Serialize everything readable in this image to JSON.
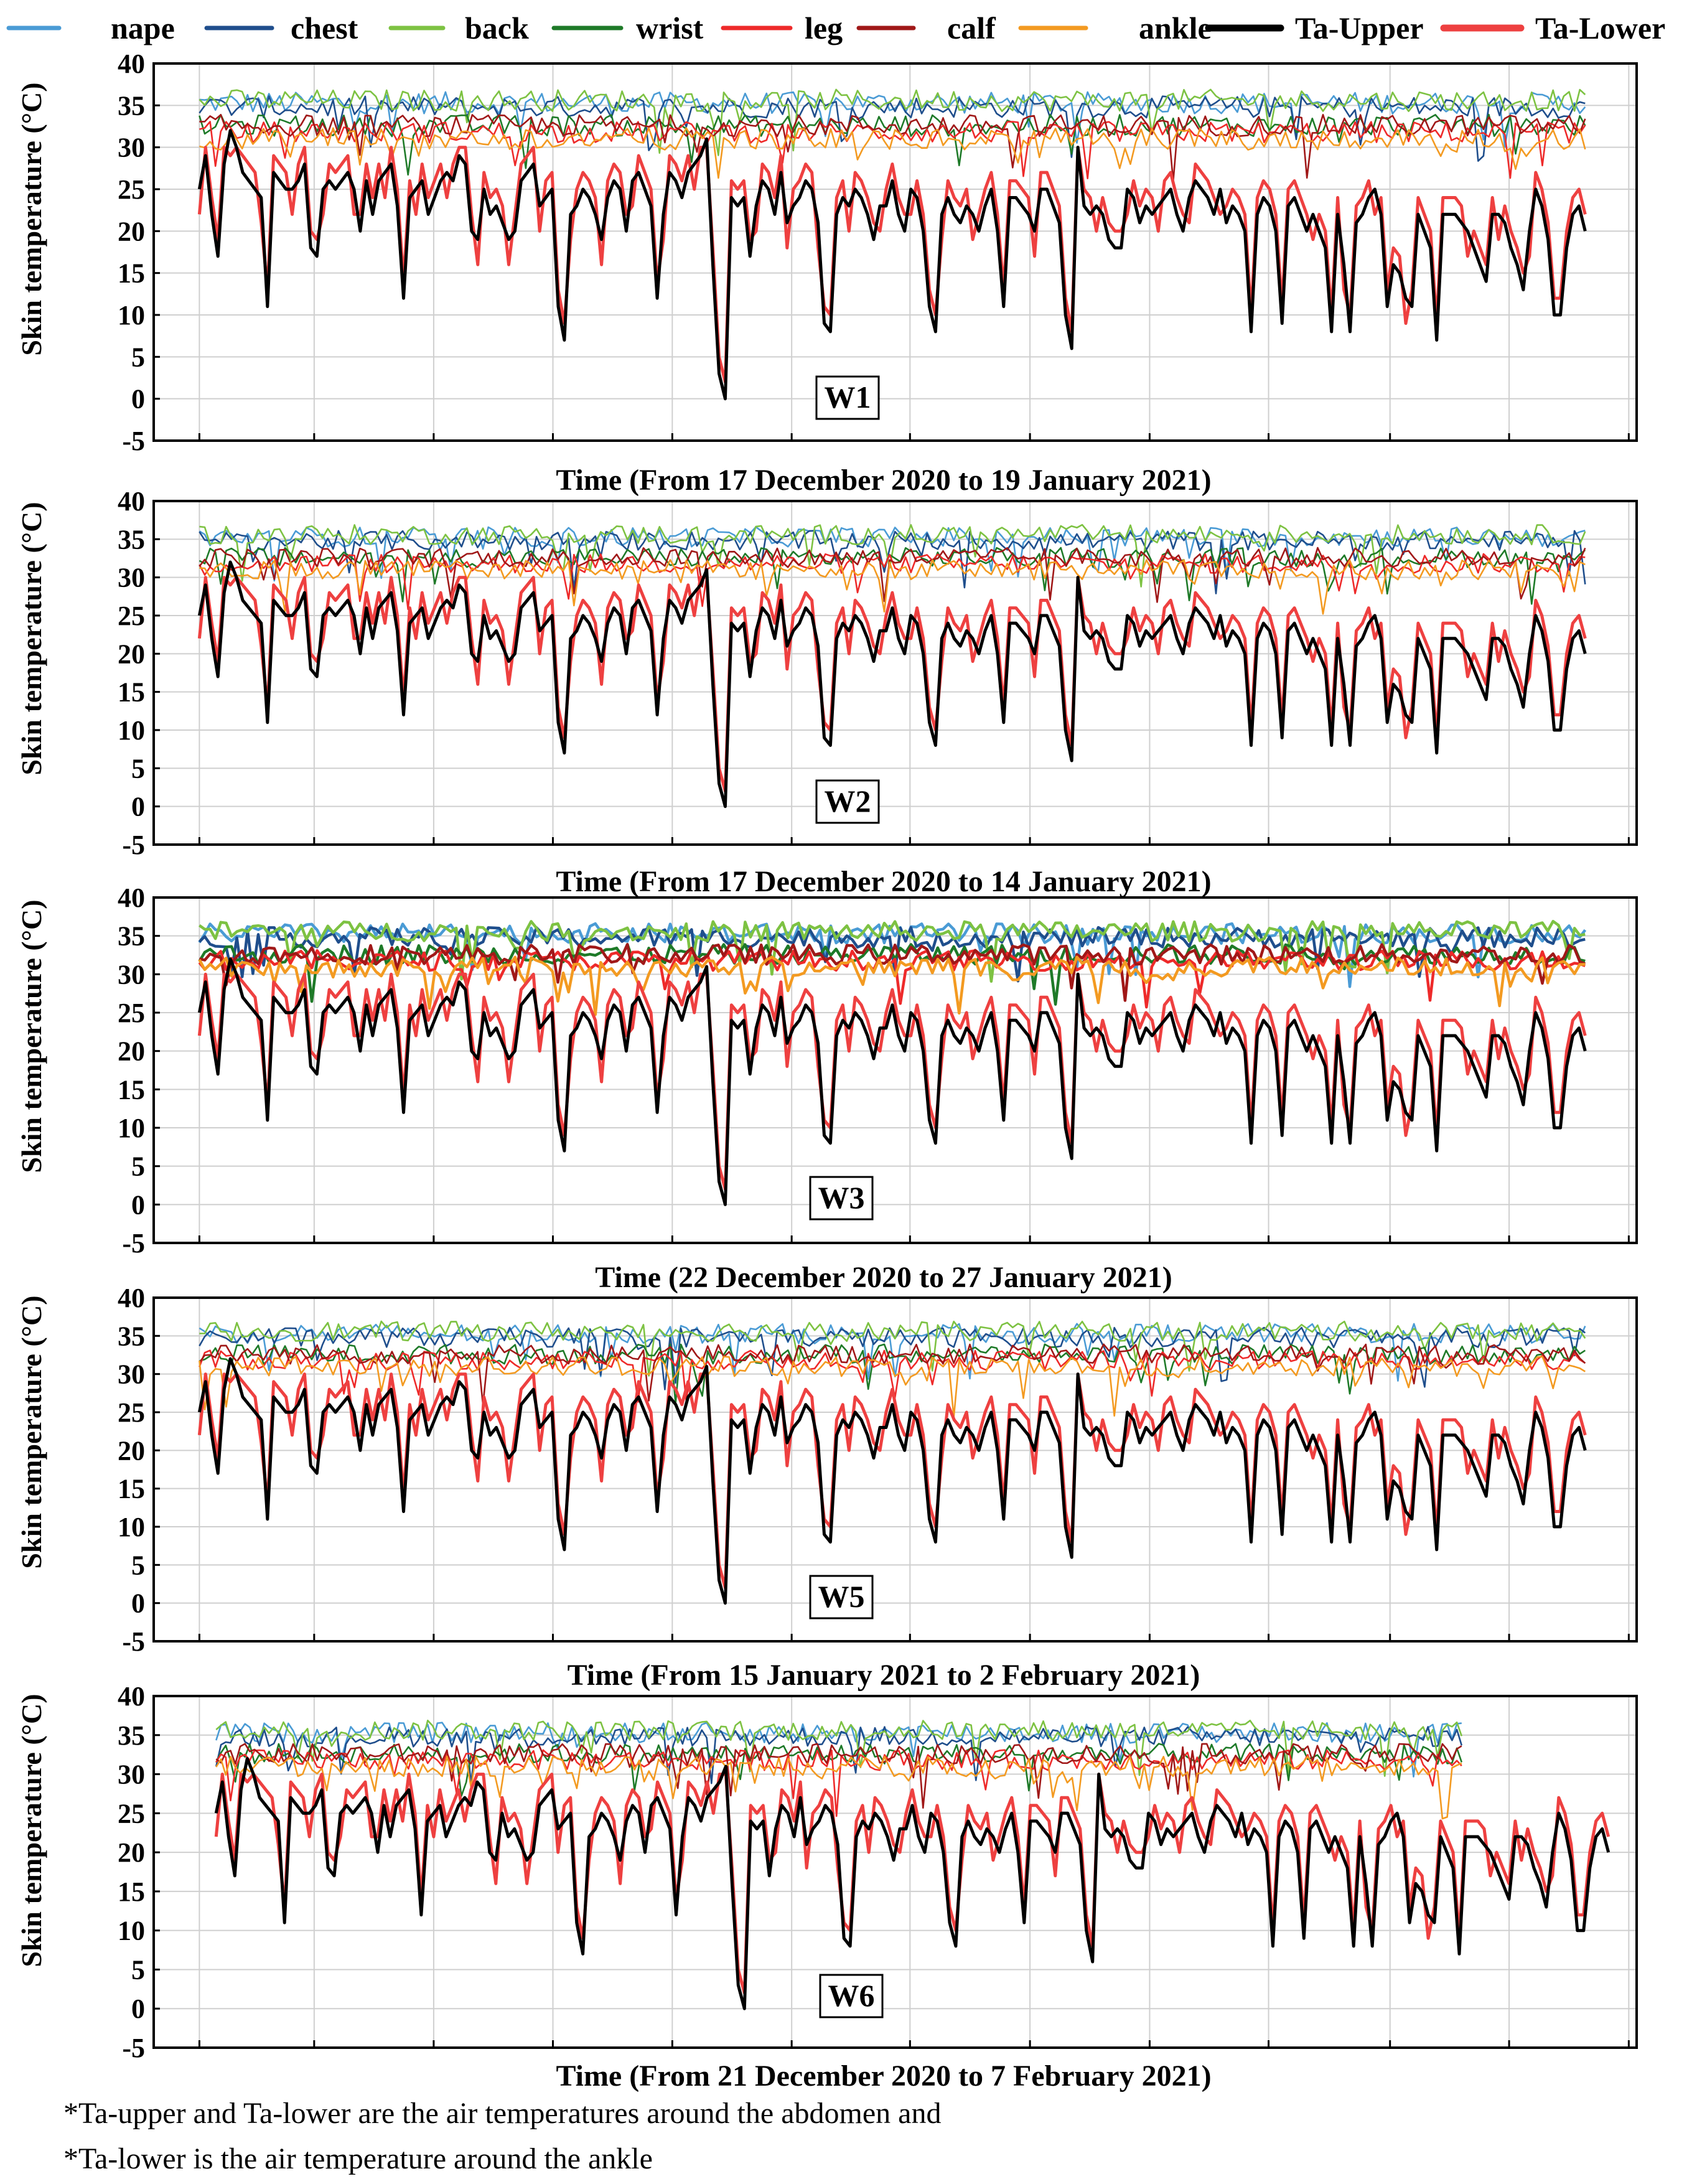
{
  "chart_data": {
    "type": "line",
    "legend": [
      {
        "name": "nape",
        "color": "#4a9bd5",
        "thick": false
      },
      {
        "name": "chest",
        "color": "#1f4e8c",
        "thick": false
      },
      {
        "name": "back",
        "color": "#7dc242",
        "thick": false
      },
      {
        "name": "wrist",
        "color": "#1e7a28",
        "thick": false
      },
      {
        "name": "leg",
        "color": "#ee2a2a",
        "thick": false
      },
      {
        "name": "calf",
        "color": "#a01818",
        "thick": false
      },
      {
        "name": "ankle",
        "color": "#f39a21",
        "thick": false
      },
      {
        "name": "Ta-Upper",
        "color": "#000000",
        "thick": true
      },
      {
        "name": "Ta-Lower",
        "color": "#ee4040",
        "thick": true
      }
    ],
    "panels": [
      {
        "label": "W1",
        "xlabel": "Time (From 17 December 2020 to 19 January 2021)",
        "ylabel": "Skin temperature  (°C)",
        "ylim": [
          -5,
          40
        ]
      },
      {
        "label": "W2",
        "xlabel": "Time (From 17 December 2020 to 14 January 2021)",
        "ylabel": "Skin temperature  (°C)",
        "ylim": [
          -5,
          40
        ]
      },
      {
        "label": "W3",
        "xlabel": "Time (22 December 2020 to 27 January 2021)",
        "ylabel": "Skin temperature  (°C)",
        "ylim": [
          -5,
          40
        ]
      },
      {
        "label": "W5",
        "xlabel": "Time (From 15 January 2021 to 2 February 2021)",
        "ylabel": "Skin temperature  (°C)",
        "ylim": [
          -5,
          40
        ]
      },
      {
        "label": "W6",
        "xlabel": "Time (From 21 December 2020 to 7 February 2021)",
        "ylabel": "Skin temperature  (°C)",
        "ylim": [
          -5,
          40
        ]
      }
    ],
    "yticks": [
      -5,
      0,
      5,
      10,
      15,
      20,
      25,
      30,
      35,
      40
    ],
    "grid": true,
    "ta_upper": [
      25,
      29,
      22,
      17,
      28,
      32,
      30,
      27,
      26,
      25,
      24,
      11,
      27,
      26,
      25,
      25,
      26,
      28,
      18,
      17,
      25,
      26,
      25,
      26,
      27,
      25,
      20,
      26,
      22,
      26,
      27,
      28,
      23,
      12,
      24,
      25,
      26,
      22,
      24,
      26,
      27,
      26,
      29,
      28,
      20,
      19,
      25,
      22,
      23,
      21,
      19,
      20,
      26,
      27,
      28,
      23,
      24,
      25,
      11,
      7,
      22,
      23,
      25,
      24,
      22,
      19,
      24,
      26,
      25,
      20,
      26,
      27,
      25,
      23,
      12,
      22,
      27,
      26,
      24,
      27,
      28,
      29,
      31,
      16,
      3,
      0,
      24,
      23,
      24,
      17,
      23,
      26,
      25,
      22,
      27,
      21,
      23,
      24,
      26,
      25,
      21,
      9,
      8,
      22,
      24,
      23,
      25,
      24,
      22,
      19,
      23,
      23,
      26,
      22,
      20,
      25,
      24,
      20,
      11,
      8,
      22,
      24,
      22,
      21,
      23,
      22,
      20,
      23,
      25,
      20,
      11,
      24,
      24,
      23,
      22,
      20,
      25,
      25,
      23,
      21,
      10,
      6,
      30,
      23,
      22,
      23,
      22,
      19,
      18,
      18,
      25,
      24,
      21,
      23,
      22,
      23,
      24,
      25,
      22,
      20,
      24,
      26,
      25,
      24,
      22,
      25,
      21,
      23,
      22,
      20,
      8,
      22,
      24,
      23,
      20,
      9,
      23,
      24,
      22,
      20,
      22,
      20,
      18,
      8,
      22,
      16,
      8,
      21,
      22,
      24,
      25,
      22,
      11,
      16,
      15,
      12,
      11,
      22,
      20,
      18,
      7,
      22,
      22,
      22,
      21,
      20,
      18,
      16,
      14,
      22,
      22,
      21,
      18,
      16,
      13,
      20,
      25,
      23,
      19,
      10,
      10,
      18,
      22,
      23,
      20
    ]
  }
}
